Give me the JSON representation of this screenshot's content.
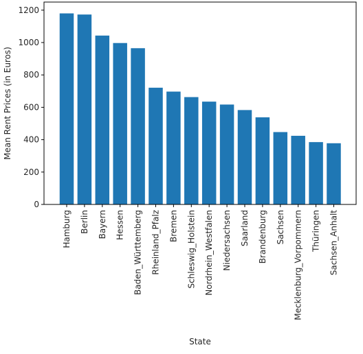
{
  "chart_data": {
    "type": "bar",
    "title": "",
    "xlabel": "State",
    "ylabel": "Mean Rent Prices (in Euros)",
    "ylim": [
      0,
      1250
    ],
    "yticks": [
      0,
      200,
      400,
      600,
      800,
      1000,
      1200
    ],
    "grid": false,
    "bar_color": "#1f77b4",
    "categories": [
      "Hamburg",
      "Berlin",
      "Bayern",
      "Hessen",
      "Baden_Württemberg",
      "Rheinland_Pfalz",
      "Bremen",
      "Schleswig_Holstein",
      "Nordrhein_Westfalen",
      "Niedersachsen",
      "Saarland",
      "Brandenburg",
      "Sachsen",
      "Mecklenburg_Vorpommern",
      "Thüringen",
      "Sachsen_Anhalt"
    ],
    "values": [
      1180,
      1173,
      1043,
      997,
      965,
      721,
      697,
      663,
      635,
      617,
      583,
      538,
      447,
      424,
      385,
      378
    ]
  }
}
